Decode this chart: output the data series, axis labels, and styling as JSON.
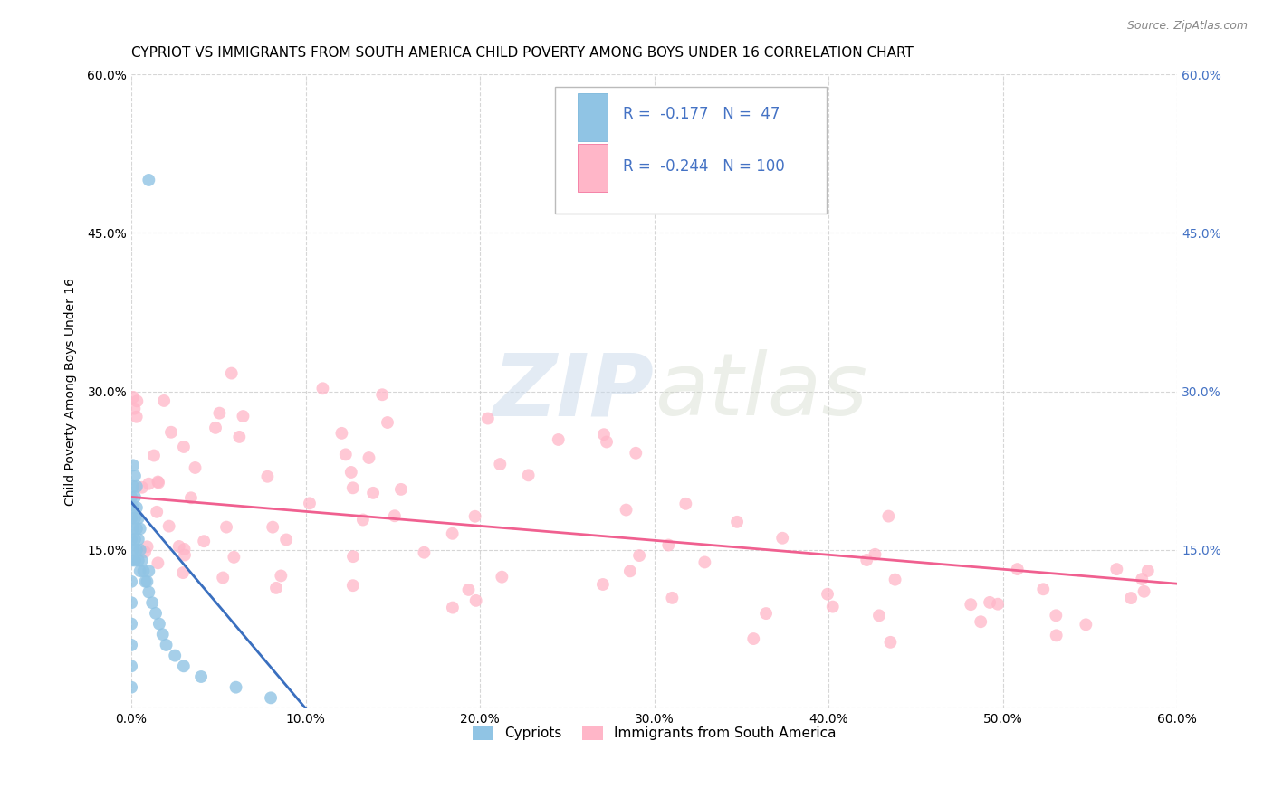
{
  "title": "CYPRIOT VS IMMIGRANTS FROM SOUTH AMERICA CHILD POVERTY AMONG BOYS UNDER 16 CORRELATION CHART",
  "source": "Source: ZipAtlas.com",
  "ylabel": "Child Poverty Among Boys Under 16",
  "xlim": [
    0,
    0.6
  ],
  "ylim": [
    0,
    0.6
  ],
  "cypriot_color": "#90c4e4",
  "immigrant_color": "#ffb6c8",
  "cypriot_line_color": "#3a6fbf",
  "immigrant_line_color": "#f06090",
  "cypriot_R": -0.177,
  "cypriot_N": 47,
  "immigrant_R": -0.244,
  "immigrant_N": 100,
  "legend_label_1": "Cypriots",
  "legend_label_2": "Immigrants from South America",
  "watermark_zip": "ZIP",
  "watermark_atlas": "atlas",
  "background_color": "#ffffff",
  "grid_color": "#cccccc",
  "title_fontsize": 11,
  "right_tick_color": "#4472c4"
}
